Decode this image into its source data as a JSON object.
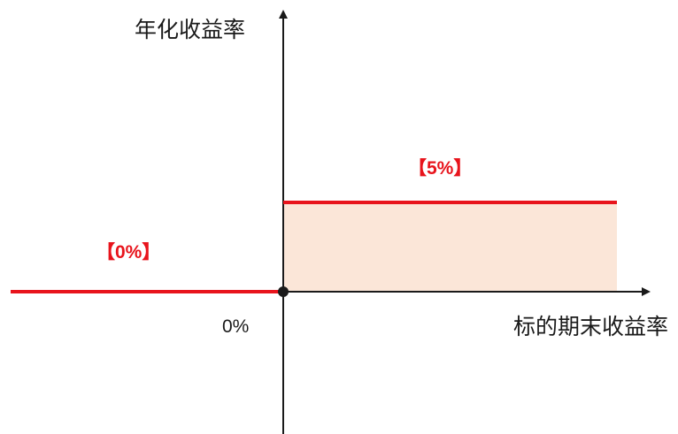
{
  "chart_data": {
    "type": "line",
    "title": "",
    "xlabel": "标的期末收益率",
    "ylabel": "年化收益率",
    "origin_label": "0%",
    "grid": false,
    "legend": "none",
    "series": [
      {
        "segments": [
          {
            "from": "x<0",
            "y": 0,
            "label": "【0%】"
          },
          {
            "from": "x>=0",
            "y": 5,
            "label": "【5%】"
          }
        ]
      }
    ],
    "colors": {
      "line": "#e8141c",
      "shade": "#fbe6d8",
      "axis": "#1a1a1a"
    }
  }
}
